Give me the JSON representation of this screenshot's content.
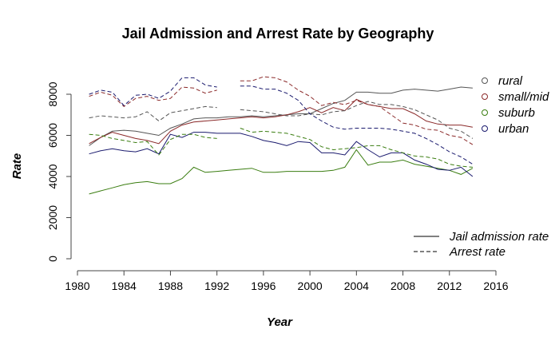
{
  "chart_data": {
    "type": "line",
    "title": "Jail Admission and Arrest Rate by Geography",
    "xlabel": "Year",
    "ylabel": "Rate",
    "xlim": [
      1980,
      2016
    ],
    "ylim": [
      0,
      8000
    ],
    "x_ticks": [
      1980,
      1984,
      1988,
      1992,
      1996,
      2000,
      2004,
      2008,
      2012,
      2016
    ],
    "y_ticks": [
      0,
      2000,
      4000,
      6000,
      8000
    ],
    "grid": false,
    "geography_legend": {
      "placement": "top-right",
      "items": [
        {
          "label": "rural",
          "color": "#555555"
        },
        {
          "label": "small/mid",
          "color": "#8b2a2a"
        },
        {
          "label": "suburb",
          "color": "#3a7d10"
        },
        {
          "label": "urban",
          "color": "#1a1a6e"
        }
      ]
    },
    "linetype_legend": {
      "placement": "bottom-right",
      "items": [
        {
          "label": "Jail admission rate",
          "dash": "solid"
        },
        {
          "label": "Arrest rate",
          "dash": "dashed"
        }
      ]
    },
    "series": [
      {
        "geo": "rural",
        "measure": "jail",
        "color": "#555555",
        "x": [
          1981,
          1982,
          1983,
          1984,
          1985,
          1986,
          1987,
          1988,
          1989,
          1990,
          1991,
          1992,
          1993,
          1994,
          1995,
          1996,
          1997,
          1998,
          1999,
          2000,
          2001,
          2002,
          2003,
          2004,
          2005,
          2006,
          2007,
          2008,
          2009,
          2010,
          2011,
          2012,
          2013,
          2014
        ],
        "y": [
          5500,
          5900,
          6200,
          6250,
          6200,
          6100,
          6000,
          6350,
          6550,
          6800,
          6850,
          6850,
          6900,
          6900,
          6950,
          6900,
          6950,
          7000,
          7050,
          7050,
          7300,
          7550,
          7700,
          8100,
          8100,
          8050,
          8050,
          8200,
          8250,
          8200,
          8150,
          8250,
          8350,
          8300
        ]
      },
      {
        "geo": "small/mid",
        "measure": "jail",
        "color": "#8b2a2a",
        "x": [
          1981,
          1982,
          1983,
          1984,
          1985,
          1986,
          1987,
          1988,
          1989,
          1990,
          1991,
          1992,
          1993,
          1994,
          1995,
          1996,
          1997,
          1998,
          1999,
          2000,
          2001,
          2002,
          2003,
          2004,
          2005,
          2006,
          2007,
          2008,
          2009,
          2010,
          2011,
          2012,
          2013,
          2014
        ],
        "y": [
          5600,
          5900,
          6150,
          6000,
          5850,
          5750,
          5600,
          6200,
          6500,
          6650,
          6700,
          6750,
          6800,
          6850,
          6900,
          6850,
          6900,
          7000,
          7150,
          7350,
          7100,
          7350,
          7200,
          7750,
          7500,
          7400,
          7300,
          7300,
          7050,
          6700,
          6550,
          6500,
          6500,
          6400
        ]
      },
      {
        "geo": "suburb",
        "measure": "jail",
        "color": "#3a7d10",
        "x": [
          1981,
          1982,
          1983,
          1984,
          1985,
          1986,
          1987,
          1988,
          1989,
          1990,
          1991,
          1992,
          1993,
          1994,
          1995,
          1996,
          1997,
          1998,
          1999,
          2000,
          2001,
          2002,
          2003,
          2004,
          2005,
          2006,
          2007,
          2008,
          2009,
          2010,
          2011,
          2012,
          2013,
          2014
        ],
        "y": [
          3150,
          3300,
          3450,
          3600,
          3700,
          3750,
          3650,
          3650,
          3900,
          4450,
          4200,
          4250,
          4300,
          4350,
          4400,
          4200,
          4200,
          4250,
          4250,
          4250,
          4250,
          4300,
          4450,
          5300,
          4550,
          4700,
          4700,
          4800,
          4600,
          4500,
          4400,
          4300,
          4100,
          4400
        ]
      },
      {
        "geo": "urban",
        "measure": "jail",
        "color": "#1a1a6e",
        "x": [
          1981,
          1982,
          1983,
          1984,
          1985,
          1986,
          1987,
          1988,
          1989,
          1990,
          1991,
          1992,
          1993,
          1994,
          1995,
          1996,
          1997,
          1998,
          1999,
          2000,
          2001,
          2002,
          2003,
          2004,
          2005,
          2006,
          2007,
          2008,
          2009,
          2010,
          2011,
          2012,
          2013,
          2014
        ],
        "y": [
          5100,
          5250,
          5350,
          5250,
          5200,
          5350,
          5100,
          6050,
          5900,
          6150,
          6150,
          6100,
          6100,
          6100,
          5950,
          5750,
          5650,
          5500,
          5700,
          5650,
          5150,
          5150,
          5050,
          5700,
          5300,
          4950,
          5150,
          5150,
          4800,
          4600,
          4350,
          4300,
          4450,
          4000
        ]
      },
      {
        "geo": "rural",
        "measure": "arrest",
        "color": "#555555",
        "x": [
          1981,
          1982,
          1983,
          1984,
          1985,
          1986,
          1987,
          1988,
          1989,
          1990,
          1991,
          1992,
          null,
          1994,
          1995,
          1996,
          1997,
          1998,
          1999,
          2000,
          2001,
          2002,
          2003,
          2004,
          2005,
          2006,
          2007,
          2008,
          2009,
          2010,
          2011,
          2012,
          2013,
          2014
        ],
        "y": [
          6850,
          6950,
          6900,
          6850,
          6900,
          7150,
          6700,
          7100,
          7200,
          7300,
          7400,
          7350,
          null,
          7250,
          7200,
          7150,
          7050,
          6950,
          6950,
          7050,
          7000,
          7150,
          7200,
          7450,
          7650,
          7500,
          7500,
          7400,
          7250,
          7000,
          6750,
          6350,
          6200,
          5850
        ]
      },
      {
        "geo": "small/mid",
        "measure": "arrest",
        "color": "#8b2a2a",
        "x": [
          1981,
          1982,
          1983,
          1984,
          1985,
          1986,
          1987,
          1988,
          1989,
          1990,
          1991,
          1992,
          null,
          1994,
          1995,
          1996,
          1997,
          1998,
          1999,
          2000,
          2001,
          2002,
          2003,
          2004,
          2005,
          2006,
          2007,
          2008,
          2009,
          2010,
          2011,
          2012,
          2013,
          2014
        ],
        "y": [
          7900,
          8100,
          7950,
          7400,
          7800,
          7900,
          7700,
          7800,
          8350,
          8300,
          8050,
          8200,
          null,
          8650,
          8650,
          8850,
          8800,
          8600,
          8200,
          7900,
          7450,
          7600,
          7500,
          7700,
          7500,
          7400,
          7000,
          6600,
          6500,
          6300,
          6250,
          6000,
          5900,
          5550
        ]
      },
      {
        "geo": "suburb",
        "measure": "arrest",
        "color": "#3a7d10",
        "x": [
          1981,
          1982,
          1983,
          1984,
          1985,
          1986,
          1987,
          1988,
          1989,
          1990,
          1991,
          1992,
          null,
          1994,
          1995,
          1996,
          1997,
          1998,
          1999,
          2000,
          2001,
          2002,
          2003,
          2004,
          2005,
          2006,
          2007,
          2008,
          2009,
          2010,
          2011,
          2012,
          2013,
          2014
        ],
        "y": [
          6050,
          6000,
          5850,
          5750,
          5650,
          5700,
          5050,
          5800,
          6050,
          6050,
          5900,
          5850,
          null,
          6350,
          6150,
          6200,
          6150,
          6100,
          5950,
          5800,
          5450,
          5300,
          5350,
          5400,
          5500,
          5500,
          5300,
          5150,
          5000,
          4950,
          4850,
          4600,
          4500,
          4450
        ]
      },
      {
        "geo": "urban",
        "measure": "arrest",
        "color": "#1a1a6e",
        "x": [
          1981,
          1982,
          1983,
          1984,
          1985,
          1986,
          1987,
          1988,
          1989,
          1990,
          1991,
          1992,
          null,
          1994,
          1995,
          1996,
          1997,
          1998,
          1999,
          2000,
          2001,
          2002,
          2003,
          2004,
          2005,
          2006,
          2007,
          2008,
          2009,
          2010,
          2011,
          2012,
          2013,
          2014
        ],
        "y": [
          8000,
          8200,
          8100,
          7450,
          7950,
          8000,
          7800,
          8150,
          8800,
          8800,
          8450,
          8350,
          null,
          8400,
          8400,
          8250,
          8250,
          8050,
          7700,
          7050,
          6700,
          6400,
          6300,
          6350,
          6350,
          6350,
          6300,
          6200,
          6100,
          5850,
          5550,
          5200,
          4950,
          4600
        ]
      }
    ]
  }
}
